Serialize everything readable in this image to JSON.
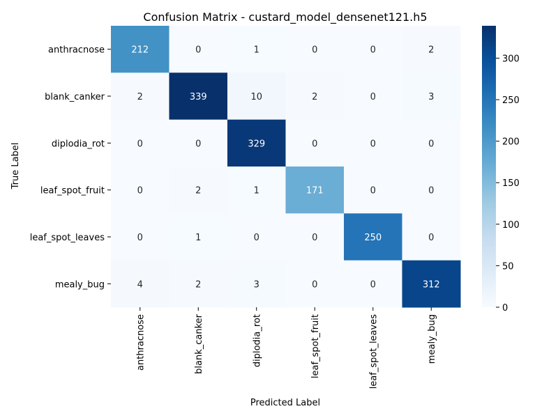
{
  "chart_data": {
    "type": "heatmap",
    "title": "Confusion Matrix - custard_model_densenet121.h5",
    "xlabel": "Predicted Label",
    "ylabel": "True Label",
    "x_categories": [
      "anthracnose",
      "blank_canker",
      "diplodia_rot",
      "leaf_spot_fruit",
      "leaf_spot_leaves",
      "mealy_bug"
    ],
    "y_categories": [
      "anthracnose",
      "blank_canker",
      "diplodia_rot",
      "leaf_spot_fruit",
      "leaf_spot_leaves",
      "mealy_bug"
    ],
    "values": [
      [
        212,
        0,
        1,
        0,
        0,
        2
      ],
      [
        2,
        339,
        10,
        2,
        0,
        3
      ],
      [
        0,
        0,
        329,
        0,
        0,
        0
      ],
      [
        0,
        2,
        1,
        171,
        0,
        0
      ],
      [
        0,
        1,
        0,
        0,
        250,
        0
      ],
      [
        4,
        2,
        3,
        0,
        0,
        312
      ]
    ],
    "colorbar": {
      "colormap": "Blues",
      "range": [
        0,
        339
      ],
      "ticks": [
        0,
        50,
        100,
        150,
        200,
        250,
        300
      ]
    },
    "text_color_light": "#ffffff",
    "text_color_dark": "#262626"
  }
}
